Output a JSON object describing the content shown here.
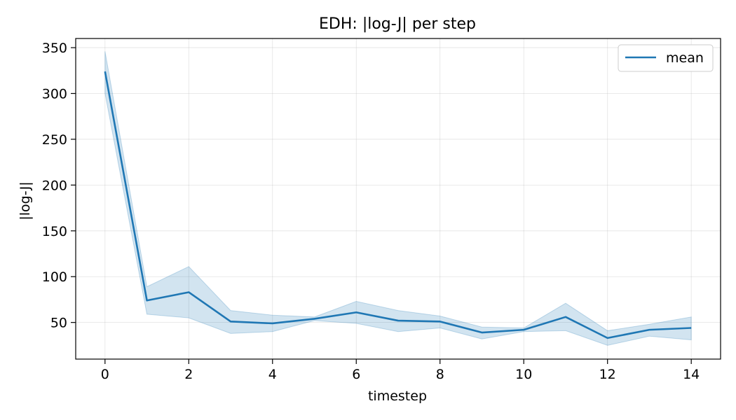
{
  "chart_data": {
    "type": "line",
    "title": "EDH: |log-J| per step",
    "xlabel": "timestep",
    "ylabel": "|log-J|",
    "xlim": [
      -0.7,
      14.7
    ],
    "ylim": [
      10,
      360
    ],
    "xticks": [
      0,
      2,
      4,
      6,
      8,
      10,
      12,
      14
    ],
    "yticks": [
      50,
      100,
      150,
      200,
      250,
      300,
      350
    ],
    "grid": true,
    "legend_position": "top-right",
    "x": [
      0,
      1,
      2,
      3,
      4,
      5,
      6,
      7,
      8,
      9,
      10,
      11,
      12,
      13,
      14
    ],
    "series": [
      {
        "name": "mean",
        "color": "#1f77b4",
        "values": [
          324,
          74,
          83,
          51,
          49,
          54,
          61,
          52,
          51,
          39,
          42,
          56,
          33,
          42,
          44
        ],
        "band_upper": [
          346,
          89,
          111,
          63,
          58,
          56,
          73,
          63,
          57,
          45,
          44,
          71,
          41,
          48,
          56
        ],
        "band_lower": [
          300,
          59,
          55,
          38,
          40,
          52,
          49,
          40,
          44,
          32,
          40,
          41,
          25,
          35,
          31
        ],
        "band_color": "#1f77b4"
      }
    ]
  }
}
